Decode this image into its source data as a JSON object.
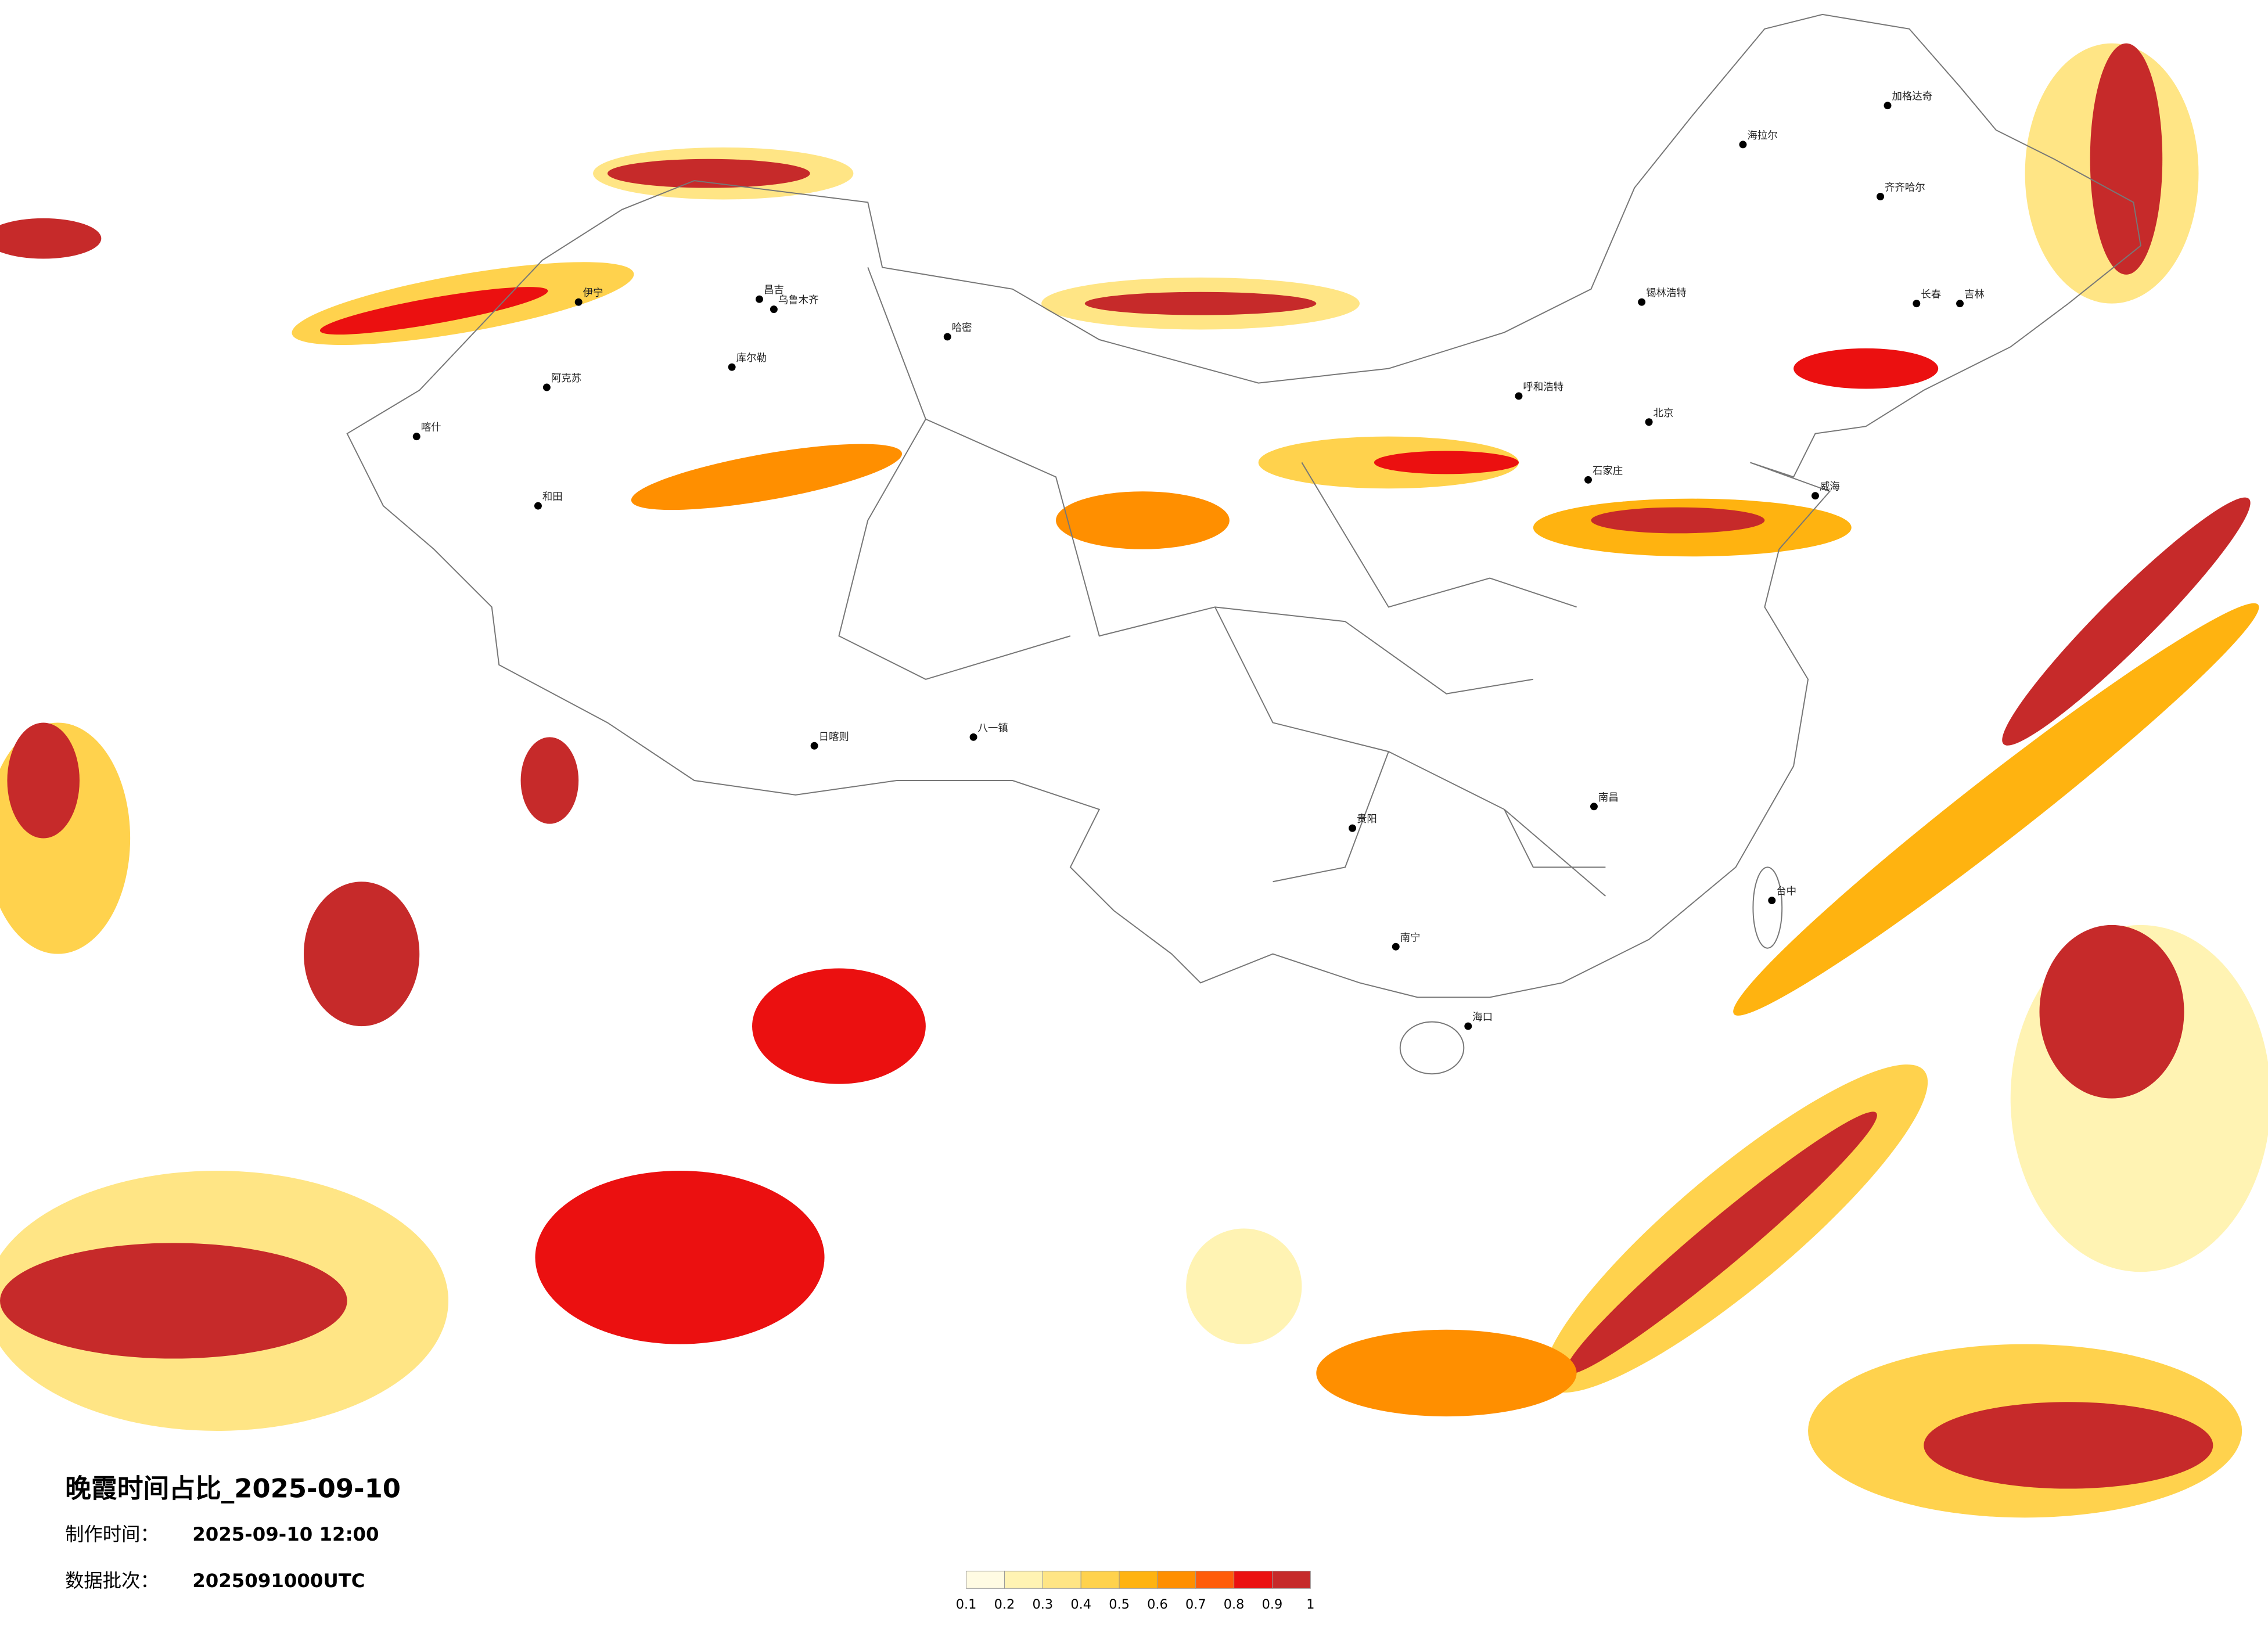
{
  "title": "晚霞时间占比_2025-09-10",
  "made_label": "制作时间：",
  "made_time": "2025-09-10 12:00",
  "batch_label": "数据批次：",
  "batch": "2025091000UTC",
  "colorbar": {
    "ticks": [
      0.1,
      0.2,
      0.3,
      0.4,
      0.5,
      0.6,
      0.7,
      0.8,
      0.9,
      1
    ],
    "colors": [
      "#fffbe3",
      "#fff3b3",
      "#ffe585",
      "#ffd24d",
      "#ffb310",
      "#ff8f00",
      "#ff5c0a",
      "#eb1010",
      "#c62a2a"
    ]
  },
  "cities": [
    {
      "name": "海拉尔"
    },
    {
      "name": "加格达奇"
    },
    {
      "name": "齐齐哈尔"
    },
    {
      "name": "长春"
    },
    {
      "name": "吉林"
    },
    {
      "name": "锡林浩特"
    },
    {
      "name": "呼和浩特"
    },
    {
      "name": "北京"
    },
    {
      "name": "石家庄"
    },
    {
      "name": "乌鲁木齐"
    },
    {
      "name": "昌吉"
    },
    {
      "name": "伊宁"
    },
    {
      "name": "阿克苏"
    },
    {
      "name": "喀什"
    },
    {
      "name": "和田"
    },
    {
      "name": "库尔勒"
    },
    {
      "name": "哈密"
    },
    {
      "name": "日喀则"
    },
    {
      "name": "八一镇"
    },
    {
      "name": "南昌"
    },
    {
      "name": "南宁"
    },
    {
      "name": "贵阳"
    },
    {
      "name": "海口"
    },
    {
      "name": "台中"
    },
    {
      "name": "威海"
    }
  ]
}
